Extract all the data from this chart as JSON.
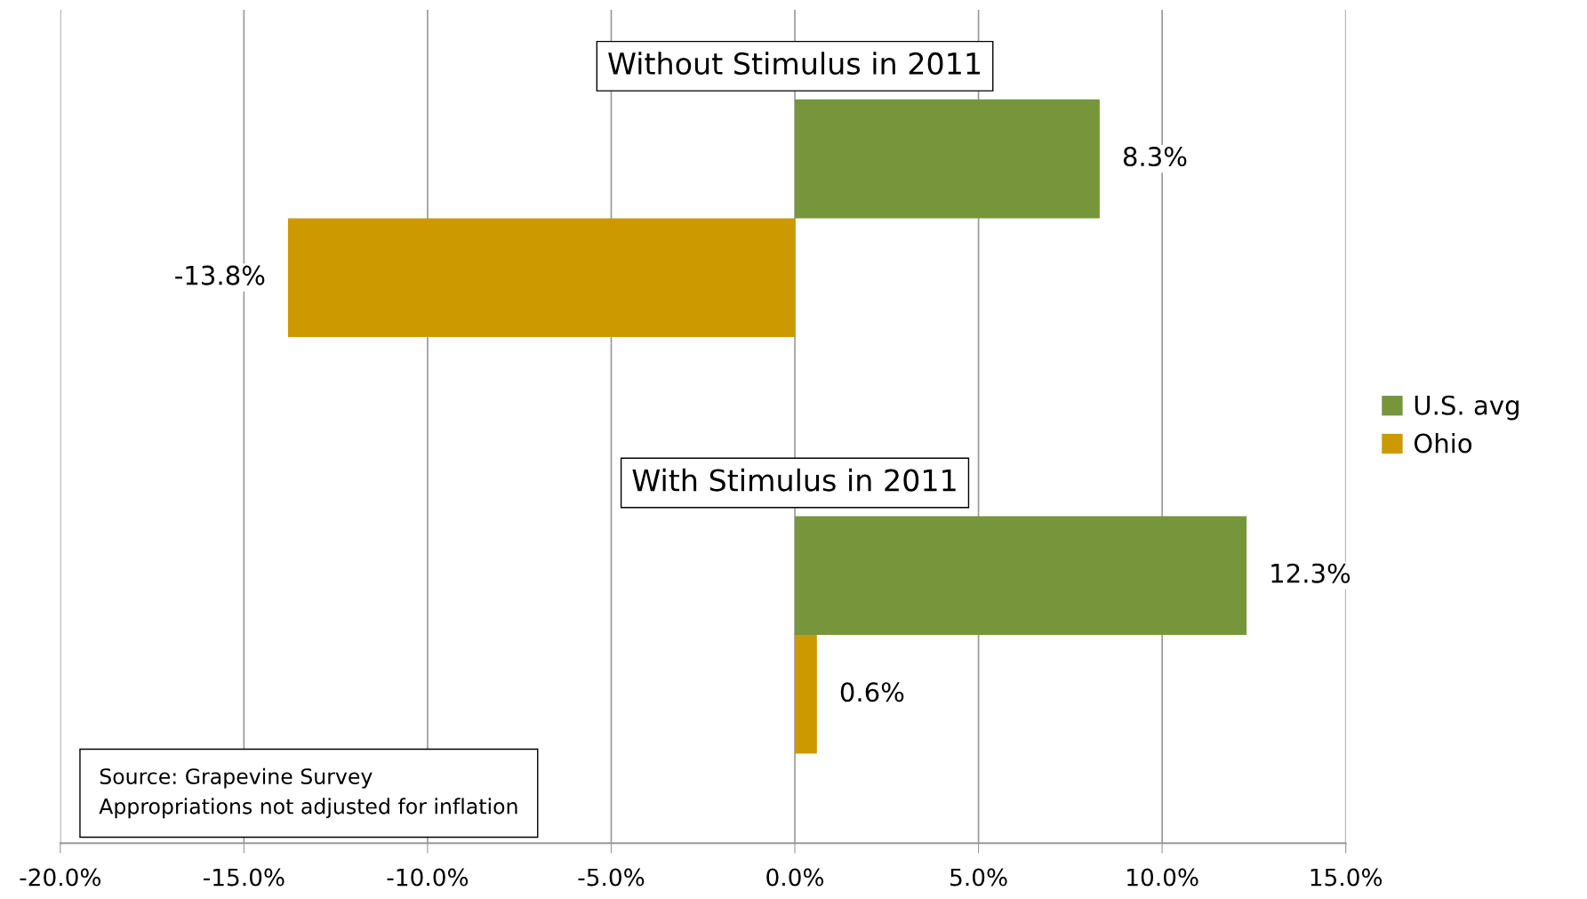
{
  "chart_data": {
    "type": "bar",
    "orientation": "horizontal",
    "categories": [
      "Without Stimulus in 2011",
      "With Stimulus in 2011"
    ],
    "series": [
      {
        "name": "U.S. avg",
        "color": "#77963c",
        "values": [
          8.3,
          12.3
        ]
      },
      {
        "name": "Ohio",
        "color": "#cc9900",
        "values": [
          -13.8,
          0.6
        ]
      }
    ],
    "value_labels": [
      [
        "8.3%",
        "12.3%"
      ],
      [
        "-13.8%",
        "0.6%"
      ]
    ],
    "xlim": [
      -20,
      15
    ],
    "xticks": [
      {
        "value": -20,
        "label": "-20.0%"
      },
      {
        "value": -15,
        "label": "-15.0%"
      },
      {
        "value": -10,
        "label": "-10.0%"
      },
      {
        "value": -5,
        "label": "-5.0%"
      },
      {
        "value": 0,
        "label": "0.0%"
      },
      {
        "value": 5,
        "label": "5.0%"
      },
      {
        "value": 10,
        "label": "10.0%"
      },
      {
        "value": 15,
        "label": "15.0%"
      }
    ],
    "grid": "x",
    "legend": "right",
    "annotations": [
      "Source: Grapevine Survey\nAppropriations not adjusted for inflation"
    ]
  }
}
